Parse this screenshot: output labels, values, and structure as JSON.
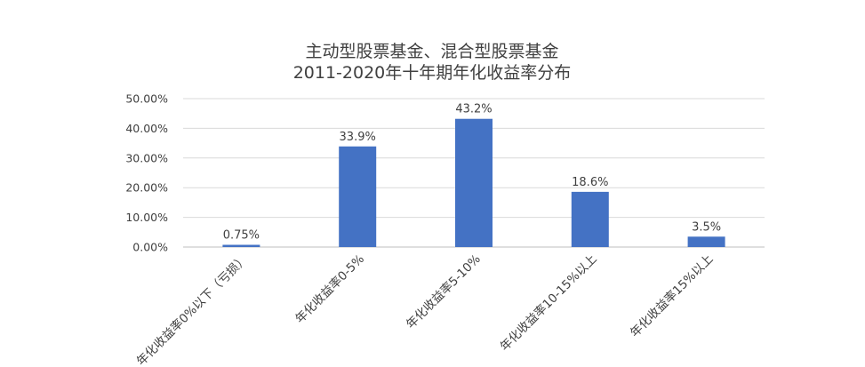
{
  "chart_data": {
    "type": "bar",
    "title": [
      "主动型股票基金、混合型股票基金",
      "2011-2020年十年期年化收益率分布"
    ],
    "categories": [
      "年化收益率0%以下（亏损）",
      "年化收益率0-5%",
      "年化收益率5-10%",
      "年化收益率10-15%以上",
      "年化收益率15%以上"
    ],
    "values": [
      0.75,
      33.9,
      43.2,
      18.6,
      3.5
    ],
    "data_labels": [
      "0.75%",
      "33.9%",
      "43.2%",
      "18.6%",
      "3.5%"
    ],
    "y_ticks": [
      0,
      10,
      20,
      30,
      40,
      50
    ],
    "y_tick_labels": [
      "0.00%",
      "10.00%",
      "20.00%",
      "30.00%",
      "40.00%",
      "50.00%"
    ],
    "ylim": [
      0,
      50
    ],
    "grid": true,
    "legend": "none",
    "colors": {
      "bar": "#4472C4",
      "grid": "#d9d9d9",
      "text": "#404040"
    }
  }
}
